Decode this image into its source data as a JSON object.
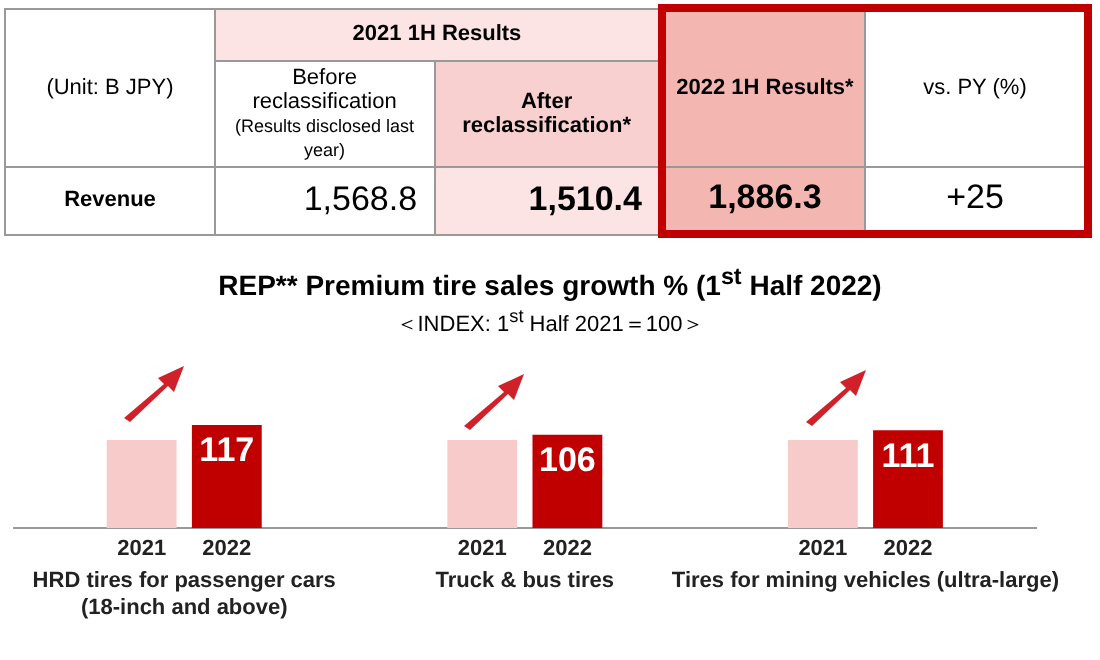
{
  "chart_data": [
    {
      "type": "other",
      "annotations": [
        "(Unit: B JPY)",
        "2021 1H Results",
        "Before reclassification",
        "(Results disclosed last year)",
        "After reclassification*",
        "2022 1H Results*",
        "vs. PY (%)",
        "Revenue",
        "1,568.8",
        "1,510.4",
        "1,886.3",
        "+25"
      ]
    },
    {
      "type": "bar",
      "title": "REP** Premium tire sales growth % (1$^{st}$ Half 2022)",
      "subtitle": "＜INDEX: 1$^{st}$ Half 2021＝100＞",
      "tick_labels": "x",
      "categories": [
        "HRD tires for passenger cars\n(18-inch and above)",
        "Truck & bus tires",
        "Tires for mining vehicles (ultra-large)"
      ],
      "series": [
        {
          "name": "2021",
          "color": "#f8cbcb",
          "values": [
            100,
            100,
            100
          ]
        },
        {
          "name": "2022",
          "color": "#c00000",
          "values": [
            117,
            106,
            111
          ],
          "value_labels": [
            "117",
            "106",
            "111"
          ]
        }
      ],
      "grid": false,
      "legend": false
    }
  ]
}
